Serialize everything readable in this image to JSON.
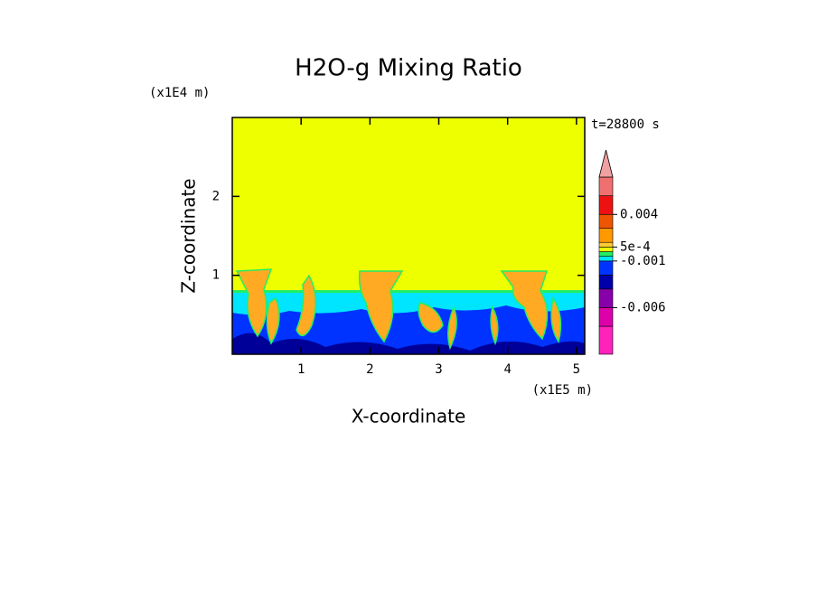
{
  "chart_data": {
    "type": "contour",
    "title": "H2O-g Mixing Ratio",
    "x_label": "X-coordinate",
    "y_label": "Z-coordinate",
    "x_unit": "(x1E5 m)",
    "y_unit": "(x1E4 m)",
    "annotation": "t=28800 s",
    "xlim": [
      0,
      5.12
    ],
    "ylim": [
      0,
      3
    ],
    "xticks": [
      1,
      2,
      3,
      4,
      5
    ],
    "yticks": [
      1,
      2
    ],
    "colorbar": {
      "levels": [
        -0.011,
        -0.008,
        -0.006,
        -0.004,
        -0.0025,
        -0.001,
        -0.0005,
        0,
        0.0005,
        0.001,
        0.0025,
        0.004,
        0.006,
        0.008
      ],
      "colors": [
        "#ff22bb",
        "#dd00aa",
        "#8800aa",
        "#0000aa",
        "#0033ff",
        "#00e5ff",
        "#22ee66",
        "#eeff00",
        "#ffcc33",
        "#ff9900",
        "#ee5500",
        "#ee1111",
        "#f07070"
      ],
      "over_color": "#f0a0a0",
      "ticks": [
        -0.006,
        -0.001,
        {
          "value": 0.0005,
          "label": "5e-4"
        },
        0.004
      ]
    }
  }
}
